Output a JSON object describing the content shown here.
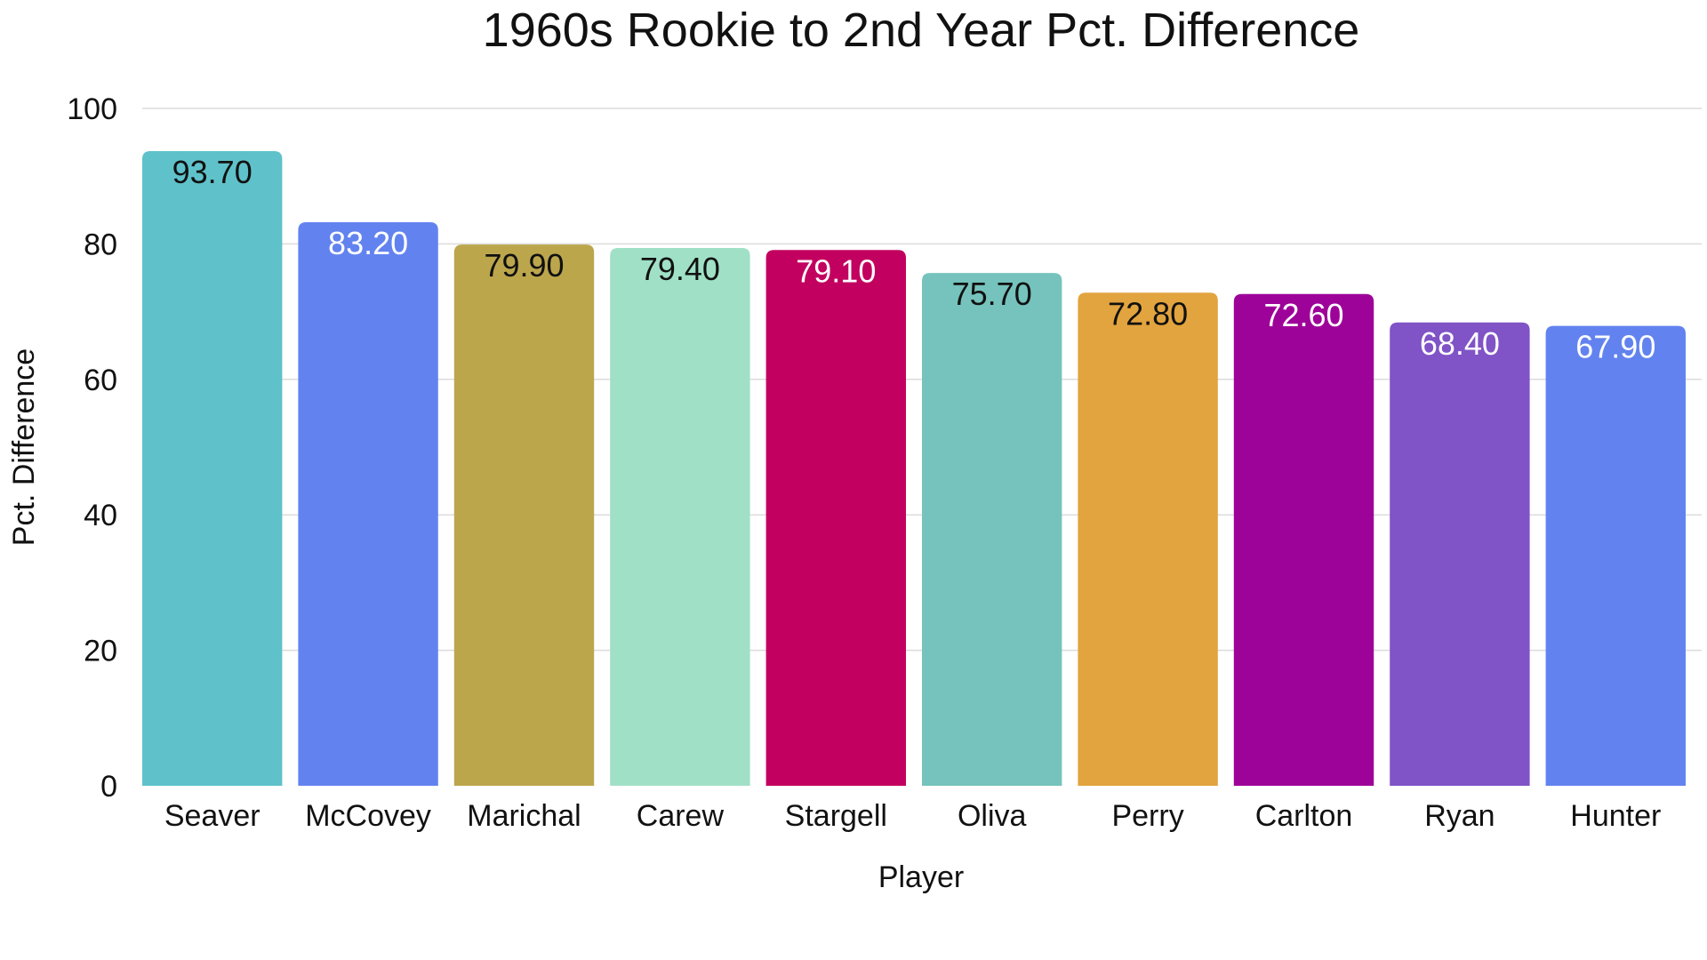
{
  "chart_data": {
    "type": "bar",
    "title": "1960s Rookie to 2nd Year Pct. Difference",
    "xlabel": "Player",
    "ylabel": "Pct. Difference",
    "categories": [
      "Seaver",
      "McCovey",
      "Marichal",
      "Carew",
      "Stargell",
      "Oliva",
      "Perry",
      "Carlton",
      "Ryan",
      "Hunter"
    ],
    "values": [
      93.7,
      83.2,
      79.9,
      79.4,
      79.1,
      75.7,
      72.8,
      72.6,
      68.4,
      67.9
    ],
    "value_labels": [
      "93.70",
      "83.20",
      "79.90",
      "79.40",
      "79.10",
      "75.70",
      "72.80",
      "72.60",
      "68.40",
      "67.90"
    ],
    "colors": [
      "#5FC2CA",
      "#6283EF",
      "#BCA64C",
      "#A0E0C6",
      "#C2005F",
      "#75C3BC",
      "#E2A43E",
      "#9E0399",
      "#8053C6",
      "#6283EF"
    ],
    "label_colors": [
      "#111111",
      "#ffffff",
      "#111111",
      "#111111",
      "#ffffff",
      "#111111",
      "#111111",
      "#ffffff",
      "#ffffff",
      "#ffffff"
    ],
    "ylim": [
      0,
      100
    ],
    "yticks": [
      0,
      20,
      40,
      60,
      80,
      100
    ],
    "grid": true,
    "legend": "none"
  }
}
